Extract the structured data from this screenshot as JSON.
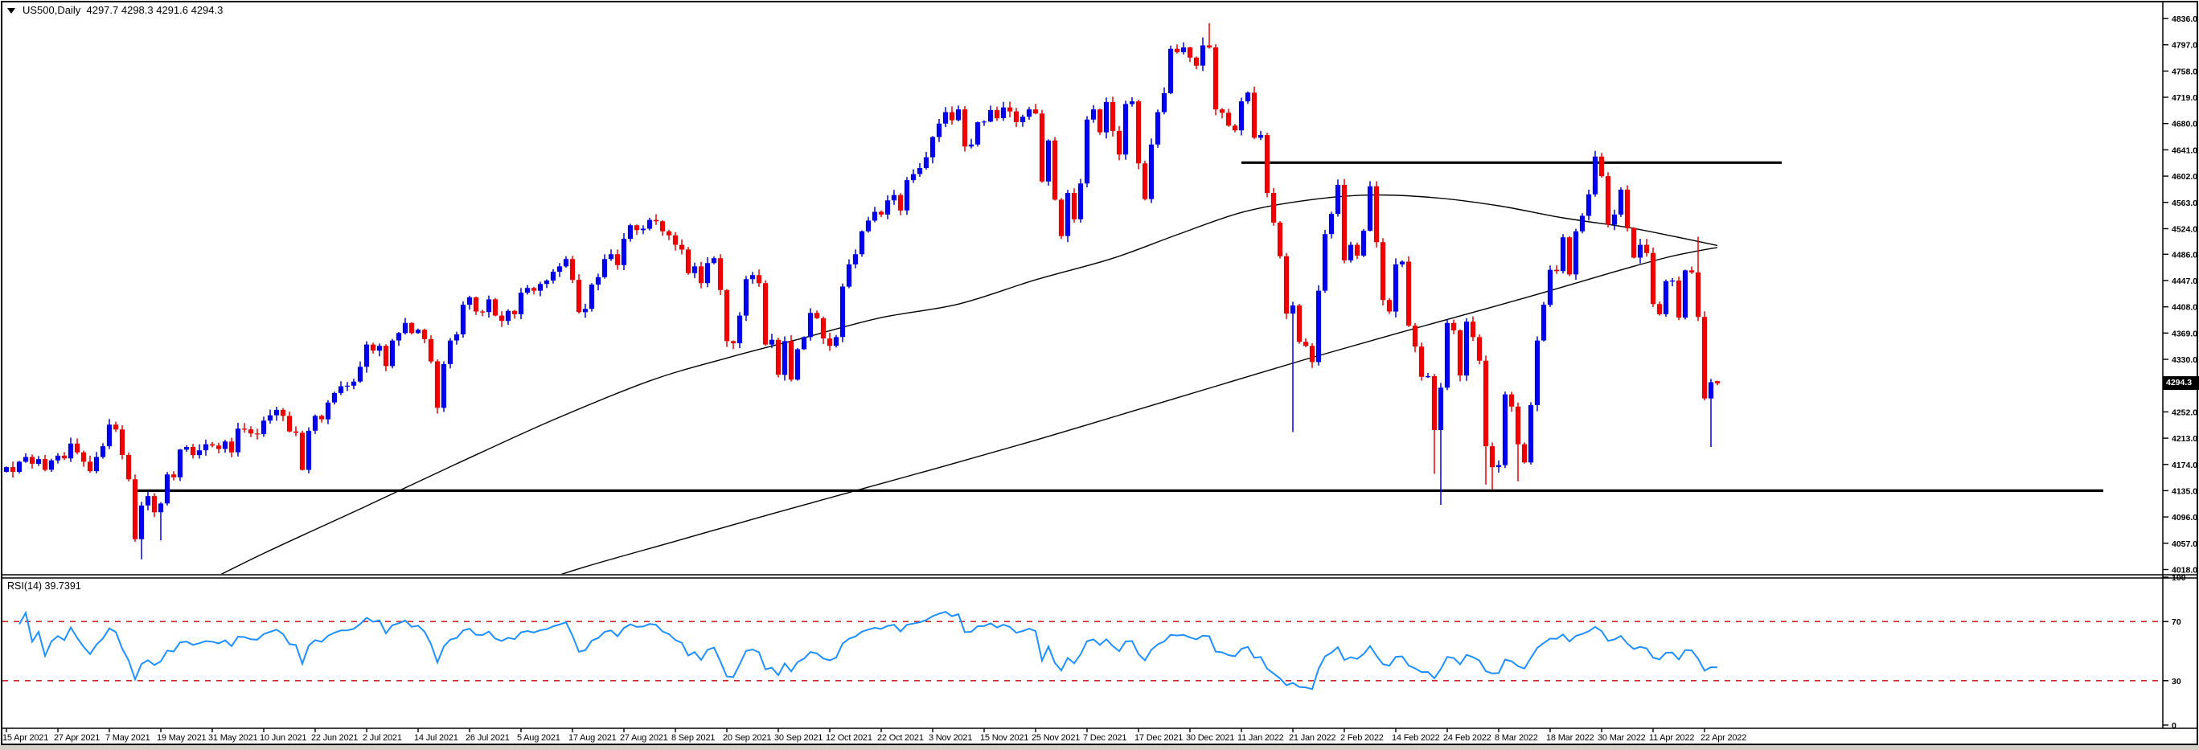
{
  "header": {
    "symbol_info": "US500,Daily  4297.7 4298.3 4291.6 4294.3",
    "dropdown_icon": "triangle-down"
  },
  "colors": {
    "background": "#ffffff",
    "up_candle": "#0000ee",
    "down_candle": "#ee0000",
    "moving_average": "#000000",
    "trendline": "#000000",
    "axis_text": "#000000",
    "rsi_line": "#1e90ff",
    "rsi_level": "#cc0000",
    "tag_bg": "#000000",
    "tag_text": "#ffffff",
    "window_edge": "#d4d0c8"
  },
  "chart_data": {
    "type": "candlestick",
    "symbol": "US500",
    "timeframe": "Daily",
    "title": "US500,Daily",
    "ohlc_current": {
      "open": 4297.7,
      "high": 4298.3,
      "low": 4291.6,
      "close": 4294.3
    },
    "price_tag": "4294.3",
    "grid": false,
    "x_labels": [
      "15 Apr 2021",
      "27 Apr 2021",
      "7 May 2021",
      "19 May 2021",
      "31 May 2021",
      "10 Jun 2021",
      "22 Jun 2021",
      "2 Jul 2021",
      "14 Jul 2021",
      "26 Jul 2021",
      "5 Aug 2021",
      "17 Aug 2021",
      "27 Aug 2021",
      "8 Sep 2021",
      "20 Sep 2021",
      "30 Sep 2021",
      "12 Oct 2021",
      "22 Oct 2021",
      "3 Nov 2021",
      "15 Nov 2021",
      "25 Nov 2021",
      "7 Dec 2021",
      "17 Dec 2021",
      "30 Dec 2021",
      "11 Jan 2022",
      "21 Jan 2022",
      "2 Feb 2022",
      "14 Feb 2022",
      "24 Feb 2022",
      "8 Mar 2022",
      "18 Mar 2022",
      "30 Mar 2022",
      "11 Apr 2022",
      "22 Apr 2022"
    ],
    "bars_per_label": 8,
    "y_axis_ticks": [
      4836.0,
      4797.0,
      4758.0,
      4719.0,
      4680.0,
      4641.0,
      4602.0,
      4563.0,
      4524.0,
      4486.0,
      4447.0,
      4408.0,
      4369.0,
      4330.0,
      4252.0,
      4213.0,
      4174.0,
      4135.0,
      4096.0,
      4057.0,
      4018.0
    ],
    "y_range": [
      4018.0,
      4836.0
    ],
    "open0": 4163,
    "closes": [
      4170,
      4163,
      4178,
      4185,
      4175,
      4182,
      4166,
      4180,
      4187,
      4183,
      4205,
      4192,
      4178,
      4164,
      4185,
      4201,
      4233,
      4226,
      4188,
      4152,
      4063,
      4113,
      4127,
      4103,
      4116,
      4159,
      4155,
      4196,
      4200,
      4188,
      4195,
      4204,
      4202,
      4197,
      4208,
      4192,
      4227,
      4226,
      4220,
      4219,
      4239,
      4247,
      4255,
      4246,
      4223,
      4221,
      4166,
      4224,
      4246,
      4241,
      4266,
      4280,
      4290,
      4291,
      4297,
      4319,
      4352,
      4343,
      4350,
      4320,
      4358,
      4369,
      4384,
      4369,
      4374,
      4360,
      4327,
      4258,
      4323,
      4358,
      4367,
      4411,
      4422,
      4401,
      4400,
      4419,
      4395,
      4387,
      4402,
      4397,
      4429,
      4436,
      4432,
      4442,
      4447,
      4460,
      4468,
      4479,
      4448,
      4400,
      4405,
      4441,
      4452,
      4479,
      4486,
      4470,
      4509,
      4529,
      4522,
      4524,
      4537,
      4535,
      4520,
      4514,
      4500,
      4493,
      4458,
      4468,
      4443,
      4473,
      4480,
      4433,
      4357,
      4354,
      4395,
      4449,
      4455,
      4443,
      4352,
      4359,
      4307,
      4357,
      4300,
      4345,
      4363,
      4399,
      4391,
      4361,
      4350,
      4363,
      4438,
      4471,
      4486,
      4520,
      4536,
      4549,
      4545,
      4566,
      4574,
      4551,
      4596,
      4605,
      4614,
      4630,
      4660,
      4680,
      4697,
      4685,
      4701,
      4646,
      4649,
      4682,
      4683,
      4700,
      4688,
      4704,
      4698,
      4682,
      4690,
      4701,
      4695,
      4594,
      4655,
      4567,
      4513,
      4577,
      4538,
      4591,
      4686,
      4701,
      4667,
      4712,
      4669,
      4634,
      4709,
      4713,
      4621,
      4568,
      4649,
      4697,
      4725,
      4791,
      4786,
      4793,
      4778,
      4766,
      4796,
      4793,
      4701,
      4696,
      4677,
      4670,
      4713,
      4726,
      4659,
      4663,
      4577,
      4533,
      4483,
      4398,
      4410,
      4356,
      4350,
      4326,
      4432,
      4516,
      4546,
      4589,
      4477,
      4500,
      4484,
      4521,
      4587,
      4504,
      4418,
      4401,
      4471,
      4475,
      4380,
      4349,
      4304,
      4305,
      4225,
      4288,
      4384,
      4373,
      4306,
      4386,
      4363,
      4328,
      4201,
      4170,
      4173,
      4278,
      4260,
      4204,
      4177,
      4262,
      4358,
      4411,
      4463,
      4461,
      4511,
      4456,
      4520,
      4543,
      4575,
      4631,
      4602,
      4530,
      4545,
      4582,
      4525,
      4481,
      4500,
      4488,
      4412,
      4397,
      4446,
      4447,
      4392,
      4462,
      4459,
      4393,
      4272,
      4296,
      4294.3
    ],
    "wick_overrides": {
      "21": {
        "low": 4033
      },
      "24": {
        "low": 4061
      },
      "186": {
        "high": 4808
      },
      "187": {
        "high": 4829
      },
      "200": {
        "low": 4222
      },
      "222": {
        "low": 4160
      },
      "223": {
        "low": 4114
      },
      "230": {
        "low": 4144
      },
      "231": {
        "low": 4137
      },
      "235": {
        "low": 4149
      },
      "263": {
        "high": 4512
      },
      "265": {
        "low": 4200
      },
      "266": {
        "open": 4297.7,
        "high": 4298.3,
        "low": 4291.6,
        "close": 4294.3
      }
    },
    "moving_averages": [
      {
        "name": "ma-fast",
        "points": [
          [
            28,
            3985
          ],
          [
            40,
            4042
          ],
          [
            55,
            4108
          ],
          [
            70,
            4175
          ],
          [
            85,
            4240
          ],
          [
            100,
            4298
          ],
          [
            112,
            4332
          ],
          [
            124,
            4362
          ],
          [
            136,
            4392
          ],
          [
            148,
            4412
          ],
          [
            160,
            4448
          ],
          [
            172,
            4480
          ],
          [
            182,
            4515
          ],
          [
            192,
            4548
          ],
          [
            202,
            4566
          ],
          [
            212,
            4574
          ],
          [
            222,
            4570
          ],
          [
            232,
            4558
          ],
          [
            242,
            4540
          ],
          [
            252,
            4526
          ],
          [
            259,
            4513
          ],
          [
            266,
            4499
          ]
        ]
      },
      {
        "name": "ma-slow",
        "points": [
          [
            78,
            3985
          ],
          [
            90,
            4022
          ],
          [
            104,
            4060
          ],
          [
            118,
            4098
          ],
          [
            132,
            4135
          ],
          [
            146,
            4172
          ],
          [
            160,
            4210
          ],
          [
            174,
            4250
          ],
          [
            188,
            4290
          ],
          [
            202,
            4330
          ],
          [
            216,
            4368
          ],
          [
            230,
            4405
          ],
          [
            240,
            4432
          ],
          [
            250,
            4460
          ],
          [
            258,
            4481
          ],
          [
            263,
            4491
          ],
          [
            266,
            4496
          ]
        ]
      }
    ],
    "trendlines": [
      {
        "name": "resistance-line",
        "price": 4622,
        "x1_bar": 192,
        "x2_bar": 276
      },
      {
        "name": "support-line",
        "price": 4135,
        "x1_bar": 20,
        "x2_bar": 326
      }
    ],
    "rsi": {
      "label": "RSI(14) 39.7391",
      "period": 14,
      "current": 39.7391,
      "levels": [
        70,
        30
      ],
      "scale_labels": [
        100,
        70,
        30,
        0
      ],
      "range": [
        0,
        100
      ]
    }
  }
}
